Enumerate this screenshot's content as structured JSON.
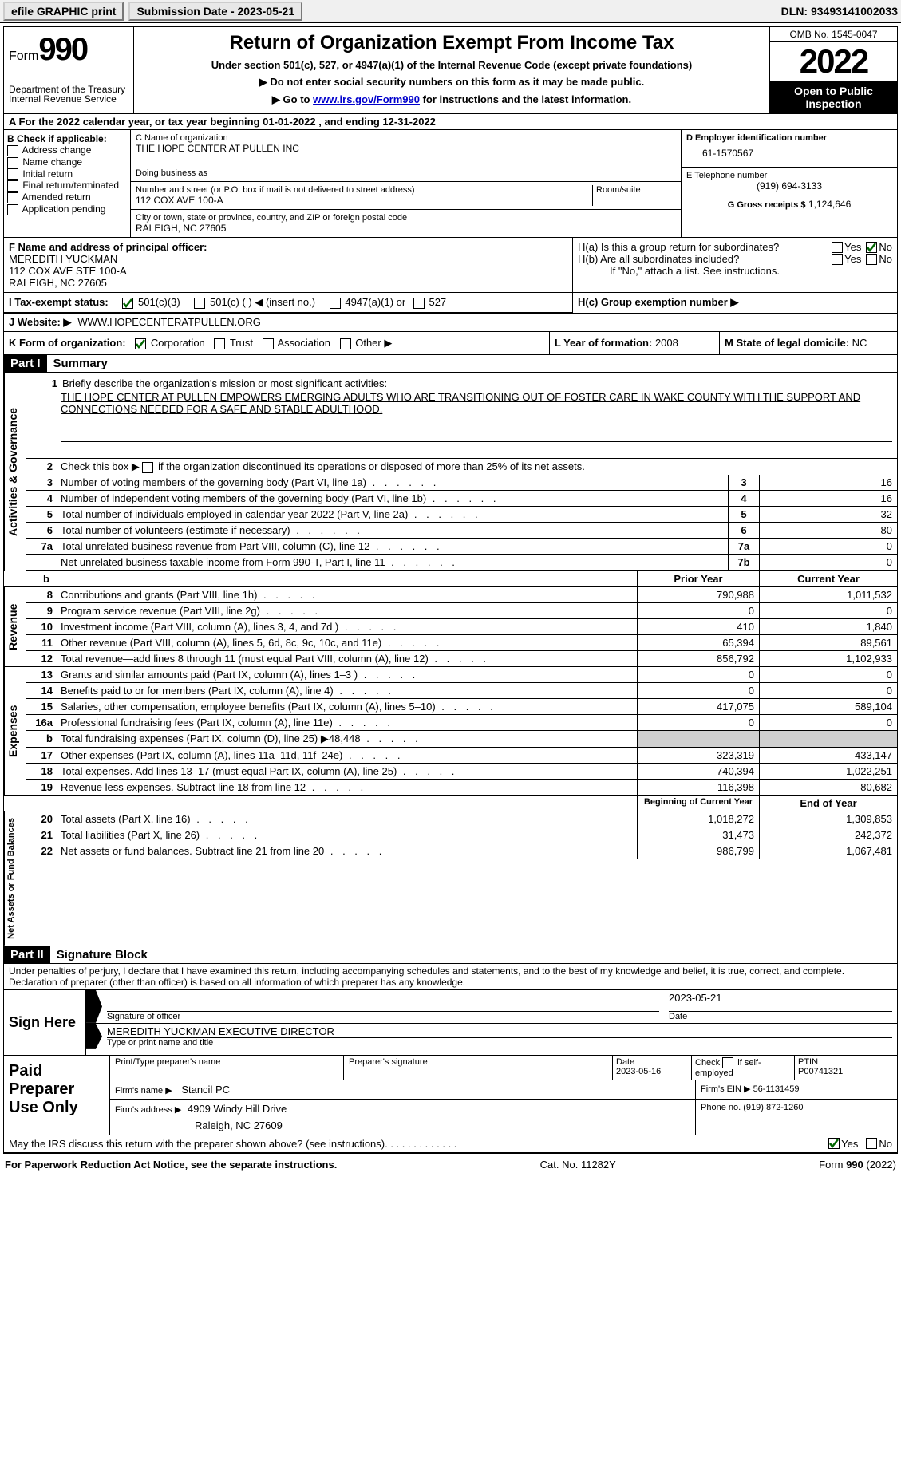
{
  "top": {
    "efile": "efile GRAPHIC print",
    "subdate_label": "Submission Date - 2023-05-21",
    "dln": "DLN: 93493141002033"
  },
  "header": {
    "form_word": "Form",
    "form_num": "990",
    "dept": "Department of the Treasury",
    "irs": "Internal Revenue Service",
    "title": "Return of Organization Exempt From Income Tax",
    "subtitle": "Under section 501(c), 527, or 4947(a)(1) of the Internal Revenue Code (except private foundations)",
    "ssn": "▶ Do not enter social security numbers on this form as it may be made public.",
    "goto1": "▶ Go to ",
    "goto_link": "www.irs.gov/Form990",
    "goto2": " for instructions and the latest information.",
    "omb": "OMB No. 1545-0047",
    "year": "2022",
    "open": "Open to Public Inspection"
  },
  "A": {
    "text": "A For the 2022 calendar year, or tax year beginning 01-01-2022    , and ending 12-31-2022"
  },
  "B": {
    "label": "B Check if applicable:",
    "items": [
      "Address change",
      "Name change",
      "Initial return",
      "Final return/terminated",
      "Amended return",
      "Application pending"
    ]
  },
  "C": {
    "name_label": "C Name of organization",
    "name": "THE HOPE CENTER AT PULLEN INC",
    "dba": "Doing business as",
    "street_label": "Number and street (or P.O. box if mail is not delivered to street address)",
    "street": "112 COX AVE 100-A",
    "room": "Room/suite",
    "city_label": "City or town, state or province, country, and ZIP or foreign postal code",
    "city": "RALEIGH, NC  27605"
  },
  "D": {
    "label": "D Employer identification number",
    "val": "61-1570567"
  },
  "E": {
    "label": "E Telephone number",
    "val": "(919) 694-3133"
  },
  "G": {
    "label": "G Gross receipts $",
    "val": "1,124,646"
  },
  "F": {
    "label": "F  Name and address of principal officer:",
    "line1": "MEREDITH YUCKMAN",
    "line2": "112 COX AVE STE 100-A",
    "line3": "RALEIGH, NC  27605"
  },
  "H": {
    "a": "H(a)  Is this a group return for subordinates?",
    "b": "H(b)  Are all subordinates included?",
    "b2": "If \"No,\" attach a list. See instructions.",
    "c": "H(c)  Group exemption number ▶",
    "yes": "Yes",
    "no": "No"
  },
  "I": {
    "label": "I   Tax-exempt status:",
    "opts": [
      "501(c)(3)",
      "501(c) (  ) ◀ (insert no.)",
      "4947(a)(1) or",
      "527"
    ]
  },
  "J": {
    "label": "J   Website: ▶",
    "val": "WWW.HOPECENTERATPULLEN.ORG"
  },
  "K": {
    "label": "K Form of organization:",
    "opts": [
      "Corporation",
      "Trust",
      "Association",
      "Other ▶"
    ]
  },
  "L": {
    "label": "L Year of formation:",
    "val": "2008"
  },
  "M": {
    "label": "M State of legal domicile:",
    "val": "NC"
  },
  "part1": {
    "hdr": "Part I",
    "title": "Summary",
    "briefly": "Briefly describe the organization's mission or most significant activities:",
    "mission": "THE HOPE CENTER AT PULLEN EMPOWERS EMERGING ADULTS WHO ARE TRANSITIONING OUT OF FOSTER CARE IN WAKE COUNTY WITH THE SUPPORT AND CONNECTIONS NEEDED FOR A SAFE AND STABLE ADULTHOOD.",
    "l2": "Check this box ▶     if the organization discontinued its operations or disposed of more than 25% of its net assets.",
    "lines_gov": [
      {
        "n": "3",
        "t": "Number of voting members of the governing body (Part VI, line 1a)",
        "box": "3",
        "v": "16"
      },
      {
        "n": "4",
        "t": "Number of independent voting members of the governing body (Part VI, line 1b)",
        "box": "4",
        "v": "16"
      },
      {
        "n": "5",
        "t": "Total number of individuals employed in calendar year 2022 (Part V, line 2a)",
        "box": "5",
        "v": "32"
      },
      {
        "n": "6",
        "t": "Total number of volunteers (estimate if necessary)",
        "box": "6",
        "v": "80"
      },
      {
        "n": "7a",
        "t": "Total unrelated business revenue from Part VIII, column (C), line 12",
        "box": "7a",
        "v": "0"
      },
      {
        "n": "",
        "t": "Net unrelated business taxable income from Form 990-T, Part I, line 11",
        "box": "7b",
        "v": "0"
      }
    ],
    "prior_hdr": "Prior Year",
    "curr_hdr": "Current Year",
    "rev": [
      {
        "n": "8",
        "t": "Contributions and grants (Part VIII, line 1h)",
        "p": "790,988",
        "c": "1,011,532"
      },
      {
        "n": "9",
        "t": "Program service revenue (Part VIII, line 2g)",
        "p": "0",
        "c": "0"
      },
      {
        "n": "10",
        "t": "Investment income (Part VIII, column (A), lines 3, 4, and 7d )",
        "p": "410",
        "c": "1,840"
      },
      {
        "n": "11",
        "t": "Other revenue (Part VIII, column (A), lines 5, 6d, 8c, 9c, 10c, and 11e)",
        "p": "65,394",
        "c": "89,561"
      },
      {
        "n": "12",
        "t": "Total revenue—add lines 8 through 11 (must equal Part VIII, column (A), line 12)",
        "p": "856,792",
        "c": "1,102,933"
      }
    ],
    "exp": [
      {
        "n": "13",
        "t": "Grants and similar amounts paid (Part IX, column (A), lines 1–3 )",
        "p": "0",
        "c": "0"
      },
      {
        "n": "14",
        "t": "Benefits paid to or for members (Part IX, column (A), line 4)",
        "p": "0",
        "c": "0"
      },
      {
        "n": "15",
        "t": "Salaries, other compensation, employee benefits (Part IX, column (A), lines 5–10)",
        "p": "417,075",
        "c": "589,104"
      },
      {
        "n": "16a",
        "t": "Professional fundraising fees (Part IX, column (A), line 11e)",
        "p": "0",
        "c": "0"
      },
      {
        "n": "b",
        "t": "Total fundraising expenses (Part IX, column (D), line 25) ▶48,448",
        "p": "shaded",
        "c": "shaded"
      },
      {
        "n": "17",
        "t": "Other expenses (Part IX, column (A), lines 11a–11d, 11f–24e)",
        "p": "323,319",
        "c": "433,147"
      },
      {
        "n": "18",
        "t": "Total expenses. Add lines 13–17 (must equal Part IX, column (A), line 25)",
        "p": "740,394",
        "c": "1,022,251"
      },
      {
        "n": "19",
        "t": "Revenue less expenses. Subtract line 18 from line 12",
        "p": "116,398",
        "c": "80,682"
      }
    ],
    "beg_hdr": "Beginning of Current Year",
    "end_hdr": "End of Year",
    "net": [
      {
        "n": "20",
        "t": "Total assets (Part X, line 16)",
        "p": "1,018,272",
        "c": "1,309,853"
      },
      {
        "n": "21",
        "t": "Total liabilities (Part X, line 26)",
        "p": "31,473",
        "c": "242,372"
      },
      {
        "n": "22",
        "t": "Net assets or fund balances. Subtract line 21 from line 20",
        "p": "986,799",
        "c": "1,067,481"
      }
    ],
    "vert_gov": "Activities & Governance",
    "vert_rev": "Revenue",
    "vert_exp": "Expenses",
    "vert_net": "Net Assets or Fund Balances"
  },
  "part2": {
    "hdr": "Part II",
    "title": "Signature Block",
    "penalty": "Under penalties of perjury, I declare that I have examined this return, including accompanying schedules and statements, and to the best of my knowledge and belief, it is true, correct, and complete. Declaration of preparer (other than officer) is based on all information of which preparer has any knowledge.",
    "sign_here": "Sign Here",
    "sig_officer": "Signature of officer",
    "sig_date": "2023-05-21",
    "date_lbl": "Date",
    "name_title": "MEREDITH YUCKMAN  EXECUTIVE DIRECTOR",
    "type_name": "Type or print name and title",
    "paid": "Paid Preparer Use Only",
    "print_name": "Print/Type preparer's name",
    "prep_sig": "Preparer's signature",
    "date2": "Date",
    "date2v": "2023-05-16",
    "check_self": "Check        if self-employed",
    "ptin": "PTIN",
    "ptinv": "P00741321",
    "firm_name": "Firm's name    ▶",
    "firm_namev": "Stancil PC",
    "firm_ein": "Firm's EIN ▶",
    "firm_einv": "56-1131459",
    "firm_addr": "Firm's address ▶",
    "firm_addrv1": "4909 Windy Hill Drive",
    "firm_addrv2": "Raleigh, NC  27609",
    "phone": "Phone no.",
    "phonev": "(919) 872-1260",
    "may_irs": "May the IRS discuss this return with the preparer shown above? (see instructions)",
    "yes": "Yes",
    "no": "No"
  },
  "footer": {
    "pra": "For Paperwork Reduction Act Notice, see the separate instructions.",
    "cat": "Cat. No. 11282Y",
    "form": "Form 990 (2022)"
  }
}
